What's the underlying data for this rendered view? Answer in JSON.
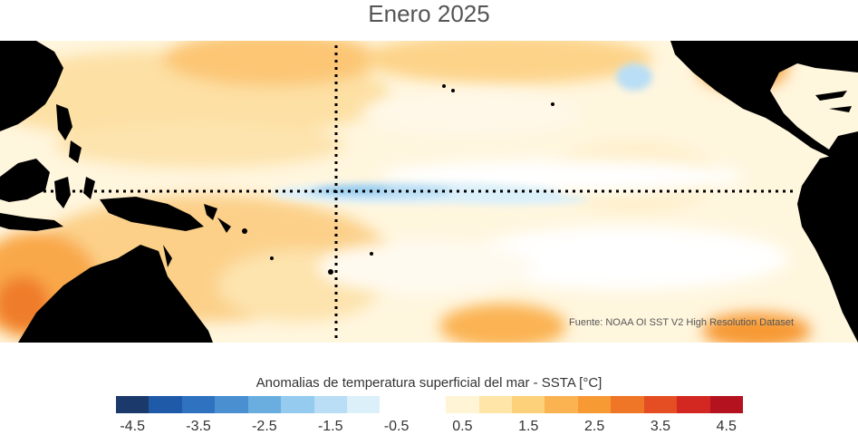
{
  "title": "Enero 2025",
  "source": "Fuente: NOAA OI SST V2 High Resolution Dataset",
  "colorbar": {
    "label": "Anomalias de temperatura superficial del mar - SSTA  [°C]",
    "ticks": [
      "-4.5",
      "-3.5",
      "-2.5",
      "-1.5",
      "-0.5",
      "0.5",
      "1.5",
      "2.5",
      "3.5",
      "4.5"
    ],
    "colors": [
      "#1b3a6b",
      "#1f5aa8",
      "#2f72bf",
      "#4a90d0",
      "#6aaee0",
      "#94cbef",
      "#b9def5",
      "#dcf0fa",
      "#ffffff",
      "#ffffff",
      "#fff4d6",
      "#ffe6a8",
      "#fdd07a",
      "#fbb352",
      "#f79a34",
      "#ef7527",
      "#e44e22",
      "#d32722",
      "#b3121e"
    ]
  },
  "colors": {
    "land": "#000000",
    "gridline": "#000000"
  }
}
